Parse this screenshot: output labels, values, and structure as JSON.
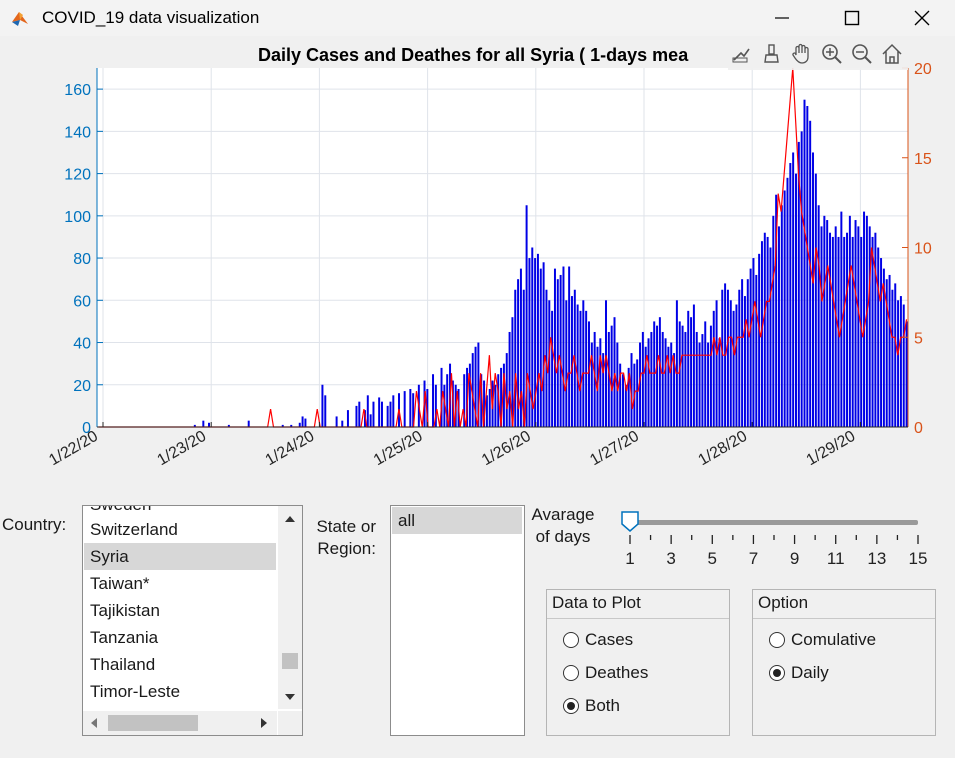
{
  "window": {
    "title": "COVID_19 data visualization"
  },
  "chart_data": {
    "type": "bar",
    "title": "Daily Cases and Deathes for all Syria ( 1-days mea",
    "x_ticks": [
      "1/22/20",
      "1/23/20",
      "1/24/20",
      "1/25/20",
      "1/26/20",
      "1/27/20",
      "1/28/20",
      "1/29/20"
    ],
    "left_axis": {
      "ylim": [
        0,
        170
      ],
      "ticks": [
        "0",
        "20",
        "40",
        "60",
        "80",
        "100",
        "120",
        "140",
        "160"
      ],
      "color": "#0072bd"
    },
    "right_axis": {
      "ylim": [
        0,
        20
      ],
      "ticks": [
        "0",
        "5",
        "10",
        "15",
        "20"
      ],
      "color": "#d95319"
    },
    "grid": true,
    "series": [
      {
        "kind": "bar",
        "color": "#0000e6",
        "values": [
          0,
          0,
          0,
          0,
          0,
          0,
          0,
          0,
          0,
          0,
          0,
          0,
          0,
          0,
          0,
          0,
          0,
          0,
          0,
          0,
          0,
          0,
          0,
          0,
          0,
          0,
          0,
          0,
          0,
          0,
          0,
          0,
          0,
          0,
          1,
          0,
          0,
          3,
          0,
          2,
          0,
          0,
          0,
          0,
          0,
          0,
          1,
          0,
          0,
          0,
          0,
          0,
          0,
          3,
          0,
          0,
          0,
          0,
          0,
          0,
          0,
          0,
          0,
          0,
          0,
          1,
          0,
          0,
          1,
          0,
          0,
          2,
          5,
          4,
          0,
          0,
          0,
          0,
          0,
          20,
          15,
          0,
          0,
          0,
          5,
          0,
          3,
          0,
          8,
          0,
          0,
          10,
          12,
          0,
          8,
          15,
          6,
          12,
          0,
          14,
          12,
          0,
          10,
          12,
          15,
          0,
          16,
          0,
          17,
          0,
          18,
          16,
          0,
          20,
          0,
          22,
          18,
          0,
          25,
          20,
          0,
          28,
          20,
          25,
          30,
          22,
          20,
          18,
          0,
          25,
          28,
          30,
          35,
          38,
          40,
          25,
          22,
          15,
          18,
          22,
          20,
          25,
          28,
          30,
          35,
          45,
          52,
          65,
          70,
          75,
          65,
          105,
          80,
          85,
          80,
          82,
          75,
          78,
          65,
          60,
          55,
          75,
          70,
          72,
          76,
          60,
          76,
          62,
          65,
          58,
          55,
          60,
          55,
          50,
          40,
          45,
          38,
          42,
          35,
          60,
          45,
          48,
          52,
          40,
          30,
          25,
          20,
          28,
          35,
          30,
          32,
          40,
          45,
          38,
          42,
          45,
          50,
          48,
          52,
          45,
          42,
          38,
          40,
          35,
          60,
          50,
          48,
          45,
          55,
          52,
          58,
          45,
          40,
          44,
          50,
          40,
          48,
          55,
          60,
          42,
          65,
          68,
          65,
          60,
          55,
          58,
          65,
          70,
          62,
          70,
          75,
          80,
          72,
          82,
          88,
          92,
          90,
          85,
          100,
          110,
          95,
          105,
          112,
          118,
          125,
          130,
          120,
          135,
          140,
          155,
          152,
          145,
          130,
          120,
          105,
          95,
          100,
          98,
          92,
          90,
          95,
          90,
          102,
          90,
          92,
          100,
          90,
          98,
          95,
          90,
          102,
          100,
          95,
          90,
          92,
          85,
          80,
          75,
          70,
          72,
          65,
          68,
          60,
          62,
          58,
          50
        ],
        "name": ""
      },
      {
        "kind": "line",
        "color": "#ff0000",
        "values": [
          0,
          0,
          0,
          0,
          0,
          0,
          0,
          0,
          0,
          0,
          0,
          0,
          0,
          0,
          0,
          0,
          0,
          0,
          0,
          0,
          0,
          0,
          0,
          0,
          0,
          0,
          0,
          0,
          0,
          0,
          0,
          0,
          0,
          0,
          0,
          0,
          0,
          0,
          0,
          0,
          0,
          0,
          0,
          0,
          0,
          0,
          0,
          0,
          0,
          0,
          0,
          0,
          0,
          0,
          0,
          0,
          0,
          0,
          0,
          1,
          0,
          0,
          0,
          0,
          0,
          0,
          0,
          0,
          0,
          0,
          0,
          0,
          0,
          0,
          0,
          1,
          0,
          0,
          0,
          0,
          0,
          0,
          0,
          0,
          0,
          0,
          0,
          0,
          0,
          0,
          0,
          1,
          0,
          0,
          0,
          0,
          0,
          0,
          0,
          0,
          0,
          0,
          0,
          1,
          0,
          0,
          0,
          0,
          0,
          2,
          1,
          0,
          2,
          0,
          0,
          0,
          1,
          0,
          2,
          1,
          0,
          3,
          0,
          2,
          0,
          1,
          0,
          3,
          2,
          1,
          0,
          3,
          0,
          2,
          4,
          1,
          3,
          2,
          0,
          3,
          1,
          2,
          0,
          3,
          1,
          2,
          0,
          3,
          2,
          1,
          2,
          3,
          2,
          4,
          3,
          5,
          4,
          3,
          4,
          3,
          2,
          3,
          3,
          4,
          3,
          2,
          3,
          3,
          3,
          4,
          3,
          2,
          4,
          3,
          4,
          3,
          2,
          3,
          2,
          3,
          3,
          2,
          3,
          1,
          2,
          2,
          3,
          3,
          4,
          3,
          3,
          3,
          4,
          3,
          3,
          4,
          3,
          4,
          3,
          3,
          4,
          4,
          4,
          4,
          4,
          4,
          4,
          4,
          4,
          4,
          4,
          5,
          4,
          5,
          4,
          4,
          5,
          5,
          4,
          5,
          5,
          5,
          6,
          5,
          6,
          7,
          6,
          5,
          6,
          7,
          7,
          8,
          9,
          13,
          12,
          14,
          16,
          18,
          20,
          17,
          14,
          12,
          11,
          10,
          9,
          8,
          10,
          9,
          7,
          8,
          9,
          8,
          7,
          6,
          5,
          6,
          7,
          8,
          9,
          8,
          7,
          6,
          5,
          6,
          7,
          10,
          9,
          8,
          7,
          8,
          7,
          6,
          5,
          5,
          4,
          5,
          5,
          6
        ],
        "name": ""
      }
    ]
  },
  "controls": {
    "country_label": "Country:",
    "country_items": [
      "Sweden",
      "Switzerland",
      "Syria",
      "Taiwan*",
      "Tajikistan",
      "Tanzania",
      "Thailand",
      "Timor-Leste"
    ],
    "country_selected": "Syria",
    "state_label_1": "State or",
    "state_label_2": "Region:",
    "state_items": [
      "all"
    ],
    "avg_label_1": "Avarage",
    "avg_label_2": "of days",
    "slider": {
      "min": 1,
      "max": 15,
      "value": 1,
      "tick_labels": [
        "1",
        "3",
        "5",
        "7",
        "9",
        "11",
        "13",
        "15"
      ]
    },
    "data_panel": {
      "title": "Data to Plot",
      "options": [
        "Cases",
        "Deathes",
        "Both"
      ],
      "selected": "Both"
    },
    "option_panel": {
      "title": "Option",
      "options": [
        "Comulative",
        "Daily"
      ],
      "selected": "Daily"
    }
  }
}
